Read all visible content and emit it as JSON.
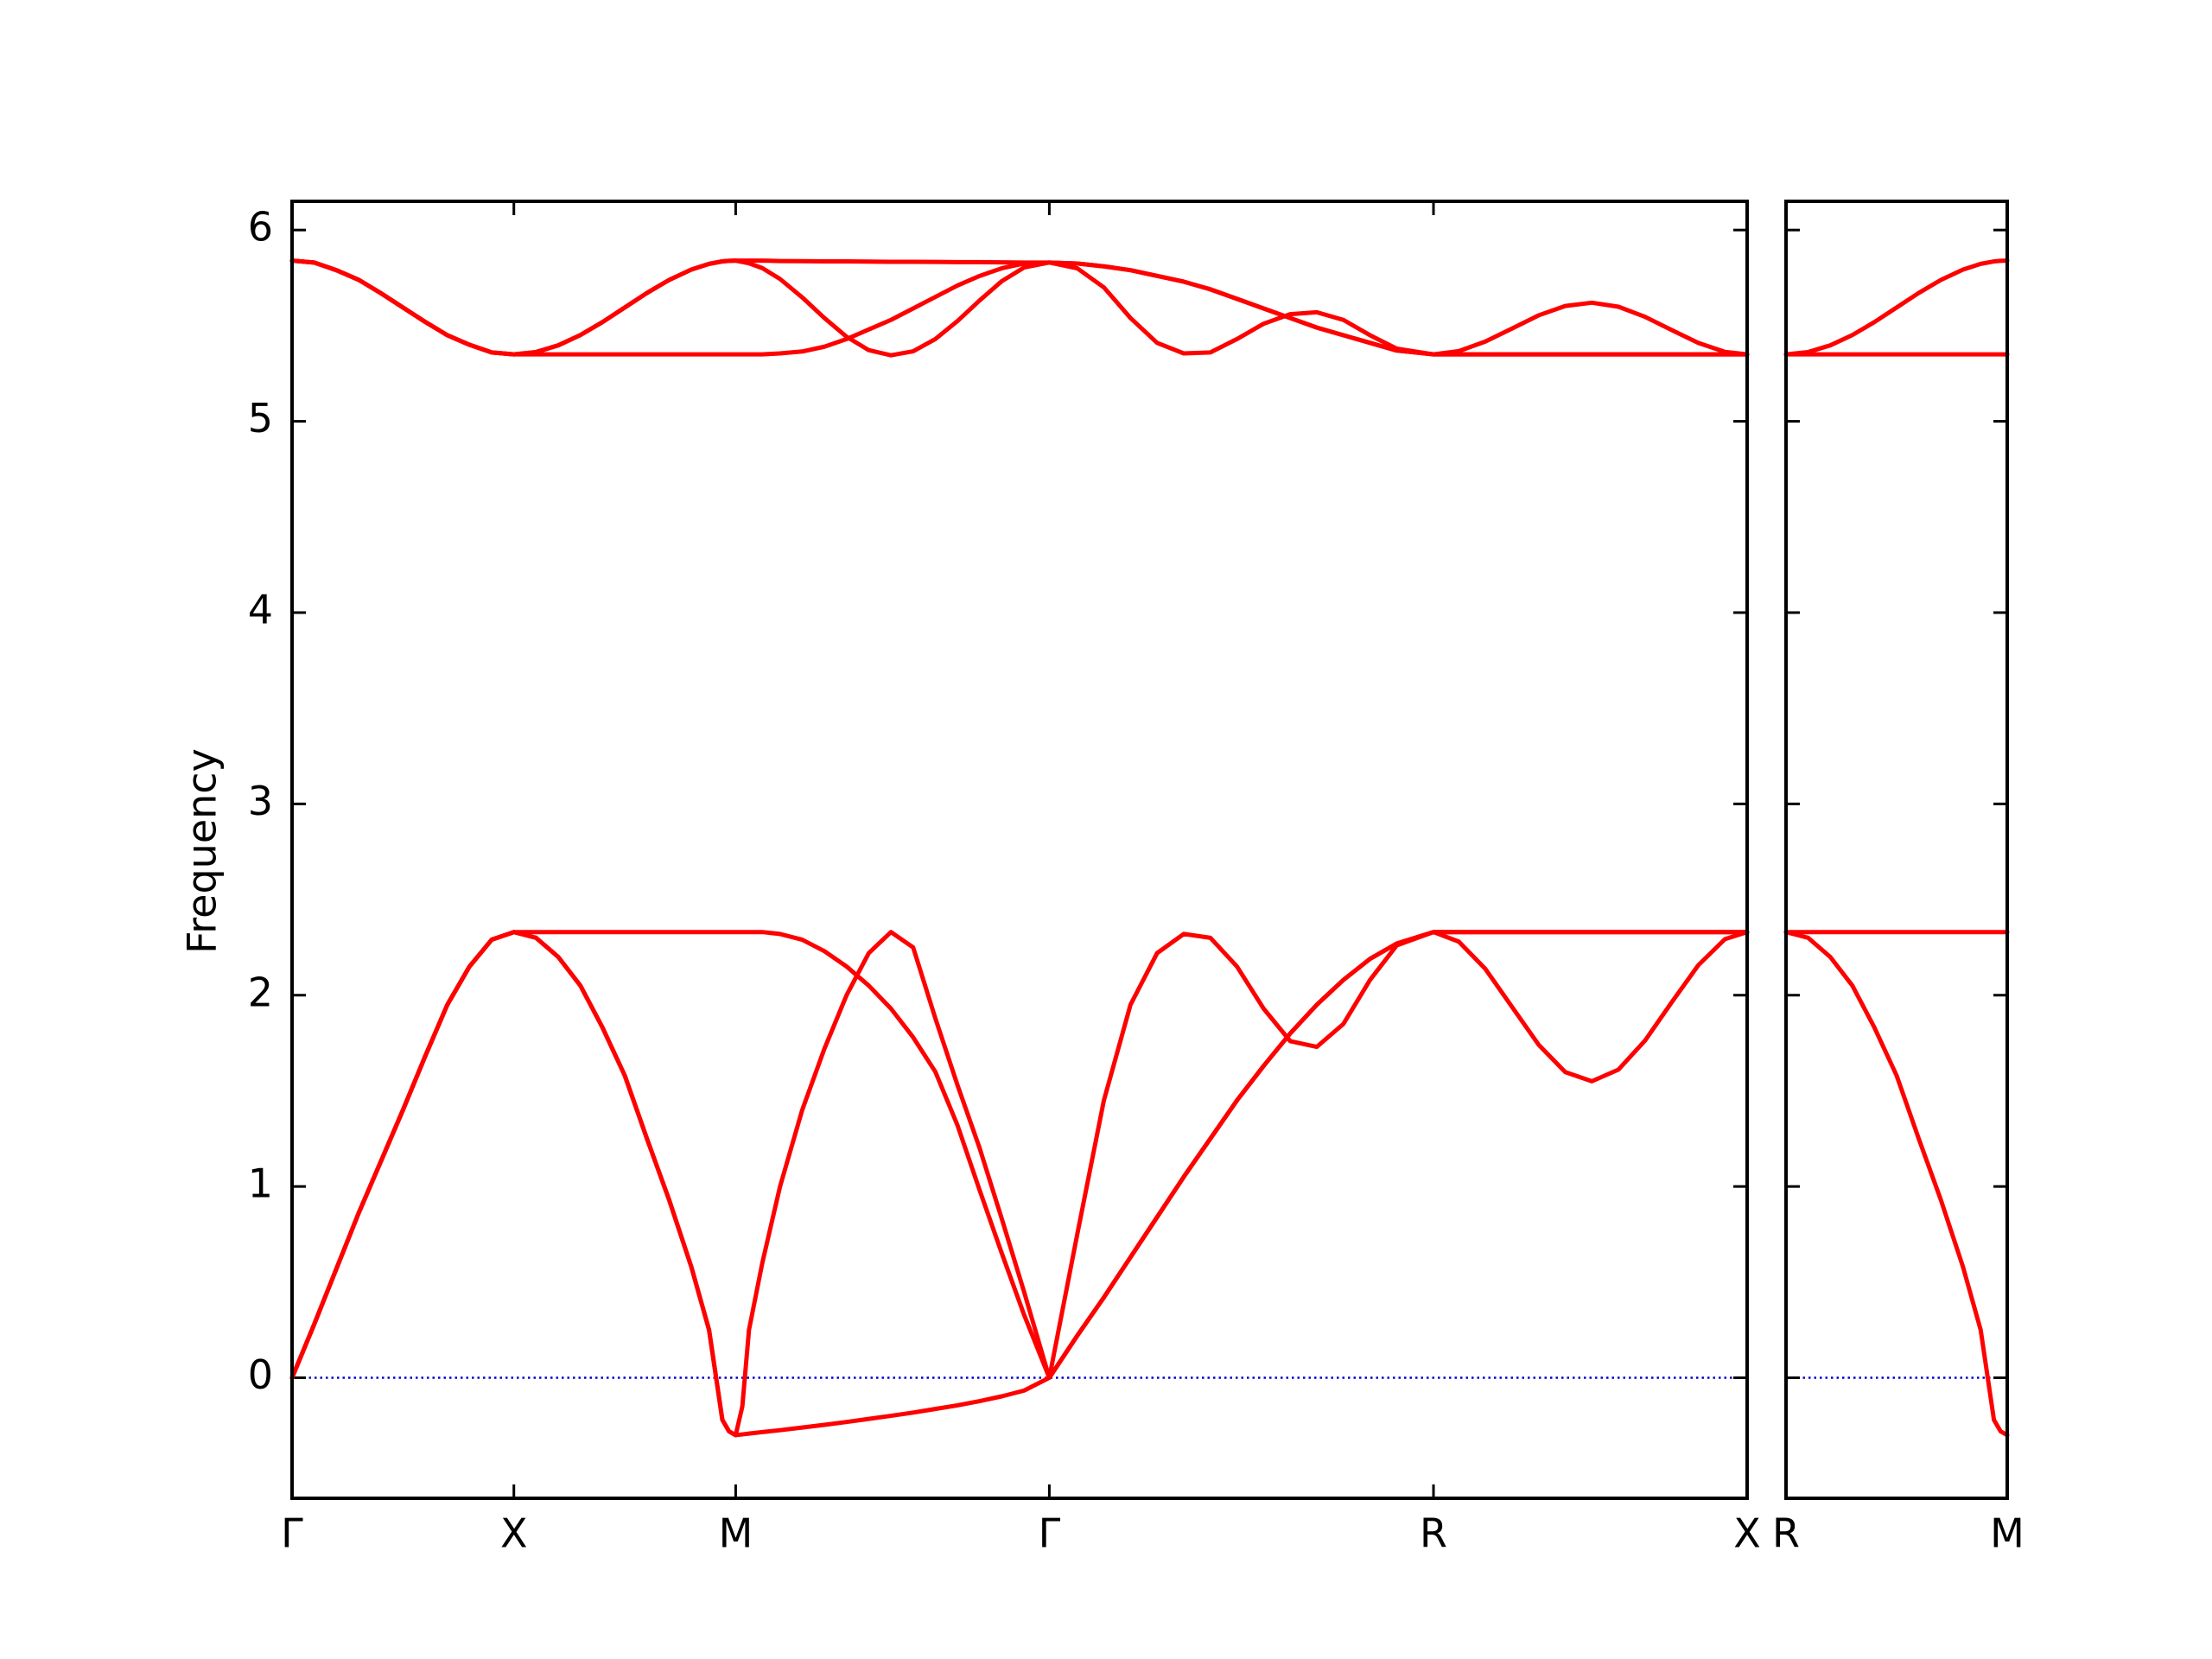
{
  "chart_data": [
    {
      "type": "line",
      "ylabel": "Frequency",
      "show_ytick_labels": true,
      "xlim": [
        0,
        3.28
      ],
      "ylim": [
        -0.63,
        6.15
      ],
      "xticks": [
        {
          "value": 0,
          "label": "Γ"
        },
        {
          "value": 0.5,
          "label": "X"
        },
        {
          "value": 1.0,
          "label": "M"
        },
        {
          "value": 1.707,
          "label": "Γ"
        },
        {
          "value": 2.573,
          "label": "R"
        },
        {
          "value": 3.28,
          "label": "X"
        }
      ],
      "yticks": [
        0,
        1,
        2,
        3,
        4,
        5,
        6
      ],
      "zero_line": {
        "y": 0,
        "color": "#0000cc",
        "style": "dotted"
      },
      "x": [
        0,
        0.05,
        0.1,
        0.15,
        0.2,
        0.25,
        0.3,
        0.35,
        0.4,
        0.45,
        0.5,
        0.55,
        0.6,
        0.65,
        0.7,
        0.75,
        0.8,
        0.85,
        0.9,
        0.94,
        0.97,
        0.985,
        1.0,
        1.015,
        1.03,
        1.06,
        1.1,
        1.15,
        1.2,
        1.25,
        1.3,
        1.35,
        1.4,
        1.45,
        1.5,
        1.55,
        1.6,
        1.65,
        1.707,
        1.77,
        1.83,
        1.89,
        1.95,
        2.01,
        2.07,
        2.13,
        2.19,
        2.25,
        2.31,
        2.37,
        2.43,
        2.49,
        2.573,
        2.63,
        2.69,
        2.75,
        2.81,
        2.87,
        2.93,
        2.99,
        3.05,
        3.11,
        3.17,
        3.23,
        3.28
      ],
      "series": [
        {
          "color": "#ff0000",
          "values": [
            0,
            0.28,
            0.57,
            0.86,
            1.13,
            1.4,
            1.68,
            1.95,
            2.15,
            2.29,
            2.33,
            2.3,
            2.2,
            2.05,
            1.83,
            1.58,
            1.25,
            0.93,
            0.58,
            0.25,
            -0.22,
            -0.28,
            -0.3,
            -0.296,
            -0.292,
            -0.284,
            -0.274,
            -0.26,
            -0.246,
            -0.231,
            -0.215,
            -0.199,
            -0.182,
            -0.163,
            -0.144,
            -0.122,
            -0.097,
            -0.067,
            0,
            0.22,
            0.42,
            0.63,
            0.84,
            1.05,
            1.25,
            1.45,
            1.63,
            1.8,
            1.95,
            2.08,
            2.19,
            2.27,
            2.33,
            2.28,
            2.137,
            1.939,
            1.741,
            1.598,
            1.55,
            1.611,
            1.763,
            1.963,
            2.157,
            2.293,
            2.33
          ]
        },
        {
          "color": "#ff0000",
          "values": [
            0,
            0.28,
            0.57,
            0.86,
            1.13,
            1.4,
            1.68,
            1.95,
            2.15,
            2.29,
            2.33,
            2.3,
            2.2,
            2.05,
            1.83,
            1.58,
            1.25,
            0.93,
            0.58,
            0.25,
            -0.22,
            -0.28,
            -0.3,
            -0.15,
            0.25,
            0.6,
            1.0,
            1.4,
            1.72,
            2.0,
            2.22,
            2.33,
            2.25,
            1.88,
            1.53,
            1.2,
            0.83,
            0.45,
            0,
            0.75,
            1.45,
            1.95,
            2.22,
            2.32,
            2.3,
            2.15,
            1.93,
            1.76,
            1.73,
            1.85,
            2.08,
            2.26,
            2.33,
            2.33,
            2.33,
            2.33,
            2.33,
            2.33,
            2.33,
            2.33,
            2.33,
            2.33,
            2.33,
            2.33,
            2.33
          ]
        },
        {
          "color": "#ff0000",
          "values": [
            0,
            0.28,
            0.57,
            0.86,
            1.13,
            1.4,
            1.68,
            1.95,
            2.15,
            2.29,
            2.33,
            2.33,
            2.33,
            2.33,
            2.33,
            2.33,
            2.33,
            2.33,
            2.33,
            2.33,
            2.33,
            2.33,
            2.33,
            2.33,
            2.33,
            2.33,
            2.32,
            2.29,
            2.23,
            2.15,
            2.05,
            1.93,
            1.78,
            1.6,
            1.32,
            0.98,
            0.65,
            0.33,
            0,
            0.22,
            0.42,
            0.63,
            0.84,
            1.05,
            1.25,
            1.45,
            1.63,
            1.8,
            1.95,
            2.08,
            2.19,
            2.27,
            2.33,
            2.33,
            2.33,
            2.33,
            2.33,
            2.33,
            2.33,
            2.33,
            2.33,
            2.33,
            2.33,
            2.33,
            2.33
          ]
        },
        {
          "color": "#ff0000",
          "values": [
            5.84,
            5.83,
            5.79,
            5.74,
            5.67,
            5.595,
            5.52,
            5.45,
            5.4,
            5.36,
            5.35,
            5.35,
            5.35,
            5.35,
            5.35,
            5.35,
            5.35,
            5.35,
            5.35,
            5.35,
            5.35,
            5.35,
            5.35,
            5.35,
            5.35,
            5.35,
            5.355,
            5.365,
            5.39,
            5.43,
            5.48,
            5.53,
            5.59,
            5.65,
            5.71,
            5.76,
            5.8,
            5.825,
            5.83,
            5.825,
            5.81,
            5.79,
            5.76,
            5.73,
            5.69,
            5.64,
            5.59,
            5.54,
            5.49,
            5.45,
            5.41,
            5.37,
            5.35,
            5.35,
            5.35,
            5.35,
            5.35,
            5.35,
            5.35,
            5.35,
            5.35,
            5.35,
            5.35,
            5.35,
            5.35
          ]
        },
        {
          "color": "#ff0000",
          "values": [
            5.84,
            5.83,
            5.79,
            5.74,
            5.67,
            5.595,
            5.52,
            5.45,
            5.4,
            5.36,
            5.35,
            5.362,
            5.397,
            5.451,
            5.519,
            5.595,
            5.671,
            5.739,
            5.793,
            5.823,
            5.836,
            5.839,
            5.84,
            5.84,
            5.84,
            5.84,
            5.838,
            5.837,
            5.836,
            5.836,
            5.835,
            5.834,
            5.834,
            5.833,
            5.832,
            5.832,
            5.831,
            5.83,
            5.83,
            5.825,
            5.81,
            5.79,
            5.76,
            5.73,
            5.69,
            5.64,
            5.59,
            5.54,
            5.49,
            5.45,
            5.41,
            5.37,
            5.35,
            5.35,
            5.35,
            5.35,
            5.35,
            5.35,
            5.35,
            5.35,
            5.35,
            5.35,
            5.35,
            5.35,
            5.35
          ]
        },
        {
          "color": "#ff0000",
          "values": [
            5.84,
            5.83,
            5.79,
            5.74,
            5.67,
            5.595,
            5.52,
            5.45,
            5.4,
            5.36,
            5.35,
            5.362,
            5.397,
            5.451,
            5.519,
            5.595,
            5.671,
            5.739,
            5.793,
            5.823,
            5.836,
            5.839,
            5.84,
            5.833,
            5.826,
            5.801,
            5.744,
            5.648,
            5.54,
            5.442,
            5.372,
            5.345,
            5.366,
            5.43,
            5.524,
            5.632,
            5.733,
            5.804,
            5.83,
            5.8,
            5.7,
            5.54,
            5.41,
            5.355,
            5.36,
            5.43,
            5.51,
            5.56,
            5.57,
            5.53,
            5.45,
            5.38,
            5.35,
            5.367,
            5.417,
            5.485,
            5.554,
            5.603,
            5.62,
            5.599,
            5.546,
            5.477,
            5.41,
            5.363,
            5.35
          ]
        }
      ]
    },
    {
      "type": "line",
      "show_ytick_labels": false,
      "xlim": [
        0,
        0.5
      ],
      "ylim": [
        -0.63,
        6.15
      ],
      "xticks": [
        {
          "value": 0,
          "label": "R"
        },
        {
          "value": 0.5,
          "label": "M"
        }
      ],
      "yticks": [
        0,
        1,
        2,
        3,
        4,
        5,
        6
      ],
      "zero_line": {
        "y": 0,
        "color": "#0000cc",
        "style": "dotted"
      },
      "x": [
        0,
        0.05,
        0.1,
        0.15,
        0.2,
        0.25,
        0.3,
        0.35,
        0.4,
        0.44,
        0.47,
        0.485,
        0.5
      ],
      "series": [
        {
          "color": "#ff0000",
          "values": [
            2.33,
            2.3,
            2.2,
            2.05,
            1.83,
            1.58,
            1.25,
            0.93,
            0.58,
            0.25,
            -0.22,
            -0.28,
            -0.3
          ]
        },
        {
          "color": "#ff0000",
          "values": [
            2.33,
            2.33,
            2.33,
            2.33,
            2.33,
            2.33,
            2.33,
            2.33,
            2.33,
            2.33,
            2.33,
            2.33,
            2.33
          ]
        },
        {
          "color": "#ff0000",
          "values": [
            5.35,
            5.35,
            5.35,
            5.35,
            5.35,
            5.35,
            5.35,
            5.35,
            5.35,
            5.35,
            5.35,
            5.35,
            5.35
          ]
        },
        {
          "color": "#ff0000",
          "values": [
            5.35,
            5.362,
            5.397,
            5.451,
            5.519,
            5.595,
            5.671,
            5.739,
            5.793,
            5.823,
            5.836,
            5.839,
            5.84
          ]
        }
      ]
    }
  ]
}
